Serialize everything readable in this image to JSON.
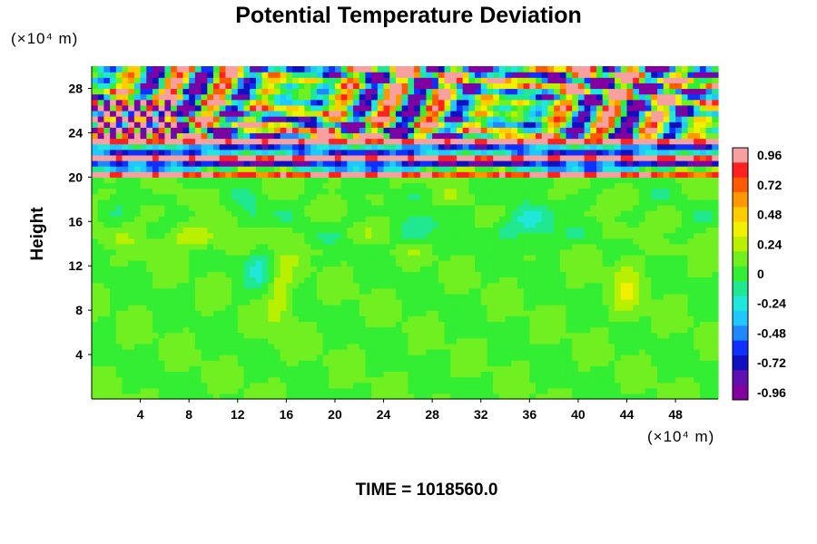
{
  "chart_data": {
    "type": "heatmap",
    "title": "Potential Temperature Deviation",
    "xlabel": "",
    "ylabel": "Height",
    "x_unit": "(×10⁴ m)",
    "y_unit": "(×10⁴ m)",
    "xlim": [
      0,
      51.5
    ],
    "ylim": [
      0,
      30
    ],
    "x_ticks": [
      4,
      8,
      12,
      16,
      20,
      24,
      28,
      32,
      36,
      40,
      44,
      48
    ],
    "y_ticks": [
      4,
      8,
      12,
      16,
      20,
      24,
      28
    ],
    "colorbar": {
      "ticks": [
        0.96,
        0.72,
        0.48,
        0.24,
        0,
        -0.24,
        -0.48,
        -0.72,
        -0.96
      ],
      "range": [
        -1.02,
        1.02
      ],
      "levels": 17,
      "colors": [
        "#f8a0a0",
        "#ff2020",
        "#ff5a00",
        "#ff9800",
        "#ffcc00",
        "#f0f000",
        "#b8f000",
        "#70f020",
        "#33ee33",
        "#20e890",
        "#20e8d8",
        "#20c8ff",
        "#2088ff",
        "#1030ff",
        "#1010c0",
        "#6010b0",
        "#8000a0"
      ]
    },
    "field_description_bands": [
      {
        "y_range": [
          0,
          20
        ],
        "value": 0.05,
        "note": "near-zero green region with weak eddies"
      },
      {
        "y_range": [
          20,
          23.5
        ],
        "value": "alternating ±0.96",
        "note": "strong layered bands"
      },
      {
        "y_range": [
          23.5,
          30
        ],
        "value": "mixed ±0.96",
        "note": "turbulent wave region"
      }
    ]
  },
  "footer": {
    "time_label": "TIME = 1018560.0"
  }
}
